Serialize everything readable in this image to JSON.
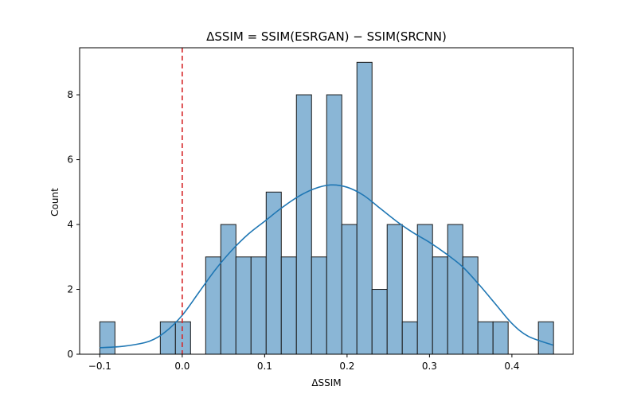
{
  "chart_data": {
    "type": "bar",
    "title": "ΔSSIM = SSIM(ESRGAN) − SSIM(SRCNN)",
    "xlabel": "ΔSSIM",
    "ylabel": "Count",
    "xlim": [
      -0.1245,
      0.4745
    ],
    "ylim": [
      0,
      9.45
    ],
    "xticks": [
      -0.1,
      0.0,
      0.1,
      0.2,
      0.3,
      0.4
    ],
    "xtick_labels": [
      "−0.1",
      "0.0",
      "0.1",
      "0.2",
      "0.3",
      "0.4"
    ],
    "yticks": [
      0,
      2,
      4,
      6,
      8
    ],
    "ytick_labels": [
      "0",
      "2",
      "4",
      "6",
      "8"
    ],
    "bins": {
      "start": -0.1,
      "width": 0.01835,
      "counts": [
        1,
        0,
        0,
        0,
        1,
        1,
        0,
        3,
        4,
        3,
        3,
        5,
        3,
        8,
        3,
        8,
        4,
        9,
        2,
        4,
        1,
        4,
        3,
        4,
        3,
        1,
        1,
        0,
        0,
        1
      ]
    },
    "kde": {
      "x": [
        -0.1,
        -0.07,
        -0.04,
        -0.02,
        0.0,
        0.02,
        0.04,
        0.06,
        0.08,
        0.1,
        0.12,
        0.14,
        0.16,
        0.18,
        0.2,
        0.22,
        0.24,
        0.26,
        0.28,
        0.3,
        0.32,
        0.34,
        0.36,
        0.38,
        0.4,
        0.42,
        0.45
      ],
      "y": [
        0.2,
        0.25,
        0.4,
        0.7,
        1.2,
        1.9,
        2.6,
        3.2,
        3.7,
        4.1,
        4.5,
        4.85,
        5.1,
        5.22,
        5.15,
        4.9,
        4.5,
        4.1,
        3.75,
        3.45,
        3.1,
        2.7,
        2.15,
        1.55,
        0.95,
        0.55,
        0.28
      ]
    },
    "reference_line": {
      "x": 0.0,
      "color": "#d62728",
      "style": "dashed"
    },
    "bar_color": "#8ab6d6",
    "bar_edge_color": "#1a1a1a",
    "kde_color": "#1f77b4",
    "grid": false,
    "legend": "none"
  }
}
